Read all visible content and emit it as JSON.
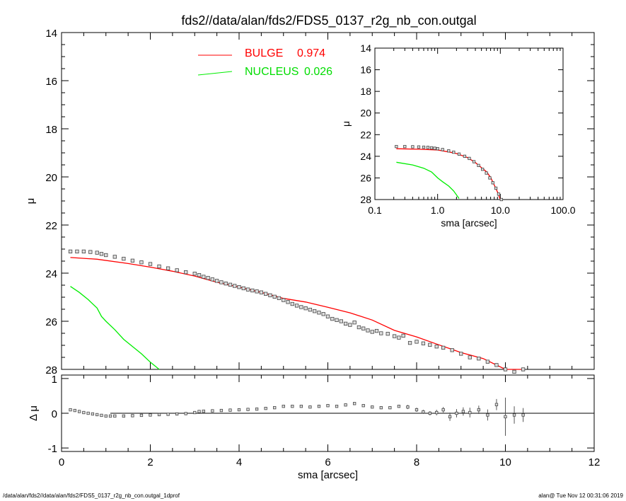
{
  "chart_data": [
    {
      "type": "scatter",
      "title": "fds2//data/alan/fds2/FDS5_0137_r2g_nb_con.outgal",
      "xlabel": "",
      "ylabel": "μ",
      "xlim": [
        0,
        12
      ],
      "ylim": [
        28,
        14
      ],
      "y_inverted": true,
      "xticks": [
        0,
        2,
        4,
        6,
        8,
        10,
        12
      ],
      "yticks": [
        14,
        16,
        18,
        20,
        22,
        24,
        26,
        28
      ],
      "legend": [
        {
          "label": "BULGE",
          "value": "0.974",
          "color": "#ff0000"
        },
        {
          "label": "NUCLEUS",
          "value": "0.026",
          "color": "#00ee00"
        }
      ],
      "series": [
        {
          "kind": "observed",
          "x": [
            0.2,
            0.35,
            0.5,
            0.65,
            0.8,
            0.9,
            1.0,
            1.2,
            1.4,
            1.6,
            1.8,
            2.0,
            2.2,
            2.4,
            2.6,
            2.8,
            3.0,
            3.1,
            3.2,
            3.3,
            3.4,
            3.5,
            3.6,
            3.7,
            3.8,
            3.9,
            4.0,
            4.1,
            4.2,
            4.3,
            4.4,
            4.5,
            4.6,
            4.7,
            4.8,
            4.9,
            5.0,
            5.1,
            5.2,
            5.3,
            5.4,
            5.5,
            5.6,
            5.7,
            5.8,
            5.9,
            6.0,
            6.1,
            6.2,
            6.3,
            6.4,
            6.5,
            6.6,
            6.7,
            6.8,
            6.9,
            7.0,
            7.1,
            7.2,
            7.35,
            7.5,
            7.6,
            7.7,
            7.85,
            8.0,
            8.15,
            8.3,
            8.45,
            8.6,
            8.8,
            9.0,
            9.2,
            9.4,
            9.6,
            9.8,
            10.0,
            10.2,
            10.4
          ],
          "y": [
            23.1,
            23.1,
            23.1,
            23.12,
            23.15,
            23.2,
            23.25,
            23.32,
            23.4,
            23.48,
            23.55,
            23.62,
            23.72,
            23.8,
            23.88,
            23.96,
            24.02,
            24.08,
            24.15,
            24.2,
            24.26,
            24.32,
            24.38,
            24.43,
            24.48,
            24.53,
            24.58,
            24.63,
            24.68,
            24.72,
            24.76,
            24.8,
            24.86,
            24.92,
            24.98,
            25.04,
            25.12,
            25.2,
            25.28,
            25.35,
            25.41,
            25.46,
            25.52,
            25.58,
            25.64,
            25.7,
            25.8,
            25.9,
            25.95,
            26.0,
            26.1,
            26.15,
            26.05,
            26.25,
            26.3,
            26.38,
            26.44,
            26.4,
            26.5,
            26.52,
            26.62,
            26.68,
            26.6,
            26.9,
            26.85,
            26.92,
            26.98,
            27.05,
            27.1,
            27.2,
            27.35,
            27.5,
            27.55,
            27.68,
            27.82,
            28.0,
            28.1,
            28.0
          ]
        },
        {
          "kind": "model",
          "name": "BULGE",
          "x": [
            0.2,
            0.8,
            1.5,
            2.0,
            2.5,
            3.0,
            3.5,
            4.0,
            4.5,
            5.0,
            5.5,
            6.0,
            6.5,
            7.0,
            7.5,
            8.0,
            8.5,
            9.0,
            9.5,
            10.0,
            10.4
          ],
          "y": [
            23.35,
            23.42,
            23.6,
            23.75,
            23.92,
            24.12,
            24.38,
            24.58,
            24.8,
            25.05,
            25.2,
            25.42,
            25.65,
            25.95,
            26.38,
            26.65,
            26.98,
            27.3,
            27.55,
            28.0,
            28.0
          ]
        },
        {
          "kind": "model",
          "name": "NUCLEUS",
          "x": [
            0.2,
            0.4,
            0.6,
            0.8,
            0.9,
            1.0,
            1.2,
            1.4,
            1.6,
            1.8,
            2.0,
            2.2
          ],
          "y": [
            24.55,
            24.8,
            25.1,
            25.45,
            25.8,
            26.0,
            26.35,
            26.75,
            27.05,
            27.35,
            27.7,
            28.0
          ]
        }
      ]
    },
    {
      "type": "scatter",
      "title": "",
      "xlabel": "sma [arcsec]",
      "ylabel": "μ",
      "xscale": "log",
      "xlim": [
        0.1,
        100
      ],
      "ylim": [
        28,
        14
      ],
      "y_inverted": true,
      "xticks": [
        "0.1",
        "1.0",
        "10.0",
        "100.0"
      ],
      "yticks": [
        14,
        16,
        18,
        20,
        22,
        24,
        26,
        28
      ],
      "series": [
        {
          "kind": "observed",
          "x": [
            0.22,
            0.3,
            0.4,
            0.5,
            0.6,
            0.7,
            0.8,
            0.9,
            1.0,
            1.2,
            1.5,
            1.8,
            2.2,
            2.7,
            3.2,
            3.8,
            4.5,
            5.2,
            6.0,
            6.8,
            7.6,
            8.5,
            9.4,
            10.4
          ],
          "y": [
            23.1,
            23.1,
            23.12,
            23.14,
            23.16,
            23.18,
            23.22,
            23.26,
            23.3,
            23.38,
            23.5,
            23.62,
            23.8,
            24.0,
            24.2,
            24.5,
            24.85,
            25.2,
            25.55,
            26.0,
            26.45,
            26.95,
            27.5,
            28.0
          ]
        },
        {
          "kind": "model",
          "name": "BULGE",
          "x": [
            0.22,
            0.5,
            1.0,
            1.5,
            2.0,
            3.0,
            4.0,
            5.0,
            6.0,
            7.0,
            8.0,
            9.0,
            10.0
          ],
          "y": [
            23.3,
            23.35,
            23.42,
            23.6,
            23.75,
            24.12,
            24.58,
            25.05,
            25.42,
            25.95,
            26.65,
            27.3,
            28.0
          ]
        },
        {
          "kind": "model",
          "name": "NUCLEUS",
          "x": [
            0.22,
            0.4,
            0.6,
            0.8,
            1.0,
            1.2,
            1.5,
            1.8,
            2.2
          ],
          "y": [
            24.55,
            24.8,
            25.1,
            25.45,
            26.0,
            26.35,
            26.75,
            27.2,
            27.9
          ]
        }
      ]
    },
    {
      "type": "scatter",
      "title": "",
      "xlabel": "sma [arcsec]",
      "ylabel": "Δ μ",
      "xlim": [
        0,
        12
      ],
      "ylim": [
        -1,
        1
      ],
      "xticks": [
        0,
        2,
        4,
        6,
        8,
        10,
        12
      ],
      "yticks": [
        -1,
        0,
        1
      ],
      "series": [
        {
          "kind": "residual",
          "x": [
            0.2,
            0.3,
            0.4,
            0.5,
            0.6,
            0.7,
            0.8,
            0.9,
            1.0,
            1.1,
            1.2,
            1.4,
            1.6,
            1.8,
            2.0,
            2.2,
            2.4,
            2.6,
            2.8,
            3.0,
            3.1,
            3.2,
            3.4,
            3.6,
            3.8,
            4.0,
            4.2,
            4.4,
            4.6,
            4.8,
            5.0,
            5.2,
            5.4,
            5.6,
            5.8,
            6.0,
            6.2,
            6.4,
            6.6,
            6.8,
            7.0,
            7.2,
            7.4,
            7.6,
            7.8,
            8.0,
            8.15,
            8.3,
            8.45,
            8.6,
            8.75,
            8.9,
            9.05,
            9.2,
            9.4,
            9.6,
            9.8,
            10.0,
            10.2,
            10.4
          ],
          "y": [
            0.1,
            0.08,
            0.05,
            0.02,
            0.0,
            -0.02,
            -0.04,
            -0.06,
            -0.08,
            -0.08,
            -0.08,
            -0.08,
            -0.07,
            -0.06,
            -0.05,
            -0.04,
            -0.03,
            -0.02,
            -0.01,
            0.02,
            0.05,
            0.06,
            0.07,
            0.08,
            0.09,
            0.1,
            0.11,
            0.12,
            0.14,
            0.16,
            0.2,
            0.2,
            0.2,
            0.18,
            0.2,
            0.22,
            0.2,
            0.24,
            0.28,
            0.22,
            0.18,
            0.16,
            0.16,
            0.2,
            0.18,
            0.1,
            0.04,
            0.0,
            0.02,
            0.1,
            -0.1,
            0.0,
            0.05,
            0.02,
            0.1,
            -0.05,
            0.25,
            -0.1,
            -0.05,
            -0.05
          ],
          "err": [
            0,
            0,
            0,
            0,
            0,
            0,
            0,
            0,
            0,
            0,
            0,
            0,
            0,
            0,
            0,
            0,
            0,
            0,
            0,
            0,
            0,
            0,
            0,
            0,
            0,
            0,
            0,
            0,
            0,
            0,
            0,
            0,
            0,
            0,
            0,
            0,
            0,
            0,
            0,
            0,
            0,
            0,
            0,
            0,
            0.06,
            0.06,
            0.06,
            0.06,
            0.08,
            0.08,
            0.12,
            0.12,
            0.12,
            0.14,
            0.12,
            0.16,
            0.16,
            0.55,
            0.25,
            0.2
          ]
        }
      ]
    }
  ],
  "footer": {
    "left": "/data/alan/fds2//data/alan/fds2/FDS5_0137_r2g_nb_con.outgal_1dprof",
    "right": "alan@  Tue Nov 12 00:31:06 2019"
  }
}
